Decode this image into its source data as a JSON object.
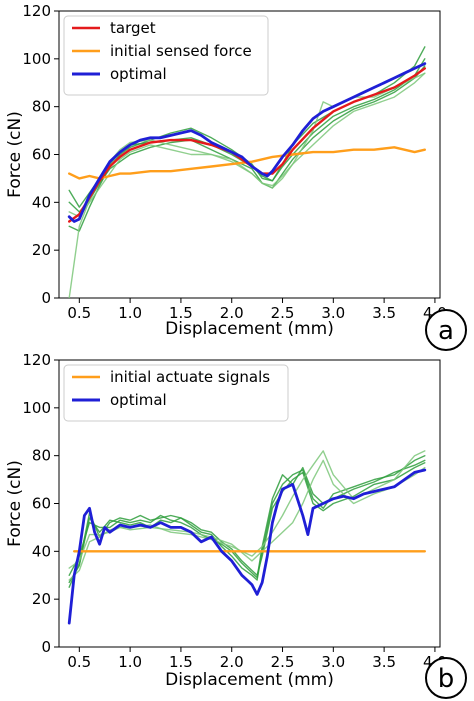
{
  "chart_data": [
    {
      "type": "line",
      "panel_label": "a",
      "xlabel": "Displacement (mm)",
      "ylabel": "Force (cN)",
      "xlim": [
        0.3,
        4.05
      ],
      "ylim": [
        0,
        120
      ],
      "xticks": [
        0.5,
        1.0,
        1.5,
        2.0,
        2.5,
        3.0,
        3.5,
        4.0
      ],
      "xtick_labels": [
        "0.5",
        "1.0",
        "1.5",
        "2.0",
        "2.5",
        "3.0",
        "3.5",
        "4.0"
      ],
      "yticks": [
        0,
        20,
        40,
        60,
        80,
        100,
        120
      ],
      "ytick_labels": [
        "0",
        "20",
        "40",
        "60",
        "80",
        "100",
        "120"
      ],
      "legend_position": "top-left",
      "legend": [
        "target",
        "initial sensed force",
        "optimal"
      ],
      "series": [
        {
          "name": "target",
          "color": "#e41a1c",
          "x": [
            0.4,
            0.5,
            0.6,
            0.7,
            0.8,
            0.9,
            1.0,
            1.2,
            1.4,
            1.6,
            1.8,
            2.0,
            2.2,
            2.3,
            2.4,
            2.5,
            2.6,
            2.8,
            3.0,
            3.2,
            3.4,
            3.6,
            3.8,
            3.9
          ],
          "y": [
            32,
            35,
            42,
            49,
            55,
            59,
            62,
            65,
            66,
            66,
            64,
            61,
            55,
            52,
            52,
            56,
            62,
            71,
            78,
            82,
            85,
            88,
            93,
            96
          ]
        },
        {
          "name": "initial sensed force",
          "color": "#ff9e1b",
          "x": [
            0.4,
            0.5,
            0.6,
            0.7,
            0.8,
            0.9,
            1.0,
            1.2,
            1.4,
            1.6,
            1.8,
            2.0,
            2.2,
            2.4,
            2.6,
            2.8,
            3.0,
            3.2,
            3.4,
            3.6,
            3.8,
            3.9
          ],
          "y": [
            52,
            50,
            51,
            50,
            51,
            52,
            52,
            53,
            53,
            54,
            55,
            56,
            57,
            59,
            60,
            61,
            61,
            62,
            62,
            63,
            61,
            62
          ]
        },
        {
          "name": "optimal",
          "color": "#1f1fd6",
          "x": [
            0.4,
            0.45,
            0.5,
            0.55,
            0.6,
            0.7,
            0.8,
            0.9,
            1.0,
            1.1,
            1.2,
            1.3,
            1.4,
            1.5,
            1.6,
            1.7,
            1.8,
            1.9,
            2.0,
            2.1,
            2.2,
            2.3,
            2.35,
            2.4,
            2.5,
            2.6,
            2.7,
            2.8,
            2.9,
            3.0,
            3.1,
            3.2,
            3.3,
            3.4,
            3.5,
            3.6,
            3.7,
            3.8,
            3.9
          ],
          "y": [
            34,
            32,
            33,
            38,
            43,
            50,
            57,
            61,
            64,
            66,
            67,
            67,
            68,
            69,
            70,
            68,
            65,
            63,
            61,
            59,
            55,
            52,
            51,
            53,
            59,
            64,
            70,
            75,
            78,
            80,
            82,
            84,
            86,
            88,
            90,
            92,
            94,
            96,
            98
          ]
        },
        {
          "name": "",
          "color": "#2e9e3c",
          "x": [
            0.4,
            0.5,
            0.6,
            0.7,
            0.8,
            0.9,
            1.0,
            1.2,
            1.4,
            1.6,
            1.8,
            2.0,
            2.2,
            2.3,
            2.4,
            2.5,
            2.6,
            2.8,
            3.0,
            3.2,
            3.4,
            3.6,
            3.8,
            3.9
          ],
          "y": [
            30,
            28,
            38,
            47,
            55,
            60,
            63,
            66,
            69,
            71,
            67,
            62,
            56,
            50,
            49,
            56,
            64,
            73,
            78,
            82,
            85,
            90,
            97,
            105
          ]
        },
        {
          "name": "",
          "color": "#2e9e3c",
          "x": [
            0.4,
            0.5,
            0.6,
            0.7,
            0.8,
            0.9,
            1.0,
            1.2,
            1.4,
            1.6,
            1.8,
            2.0,
            2.2,
            2.3,
            2.4,
            2.5,
            2.6,
            2.8,
            3.0,
            3.2,
            3.4,
            3.6,
            3.8,
            3.9
          ],
          "y": [
            45,
            38,
            44,
            50,
            56,
            61,
            64,
            65,
            66,
            67,
            64,
            60,
            55,
            51,
            49,
            55,
            60,
            69,
            76,
            80,
            83,
            87,
            93,
            100
          ]
        },
        {
          "name": "",
          "color": "#2e9e3c",
          "x": [
            0.4,
            0.5,
            0.6,
            0.7,
            0.8,
            0.9,
            1.0,
            1.2,
            1.4,
            1.6,
            1.8,
            2.0,
            2.2,
            2.3,
            2.4,
            2.5,
            2.6,
            2.8,
            3.0,
            3.2,
            3.4,
            3.6,
            3.8,
            3.9
          ],
          "y": [
            40,
            36,
            41,
            48,
            54,
            57,
            60,
            63,
            65,
            66,
            62,
            58,
            54,
            48,
            46,
            52,
            58,
            67,
            74,
            79,
            82,
            86,
            92,
            97
          ]
        },
        {
          "name": "",
          "color": "#7cc77a",
          "x": [
            0.4,
            0.5,
            0.6,
            0.7,
            0.8,
            0.9,
            1.0,
            1.2,
            1.4,
            1.6,
            1.8,
            2.0,
            2.2,
            2.3,
            2.4,
            2.5,
            2.6,
            2.8,
            2.9,
            3.0,
            3.2,
            3.4,
            3.6,
            3.8,
            3.9
          ],
          "y": [
            0,
            30,
            41,
            50,
            57,
            62,
            65,
            66,
            64,
            62,
            60,
            57,
            52,
            48,
            46,
            50,
            56,
            70,
            82,
            80,
            84,
            84,
            88,
            92,
            94
          ]
        },
        {
          "name": "",
          "color": "#7cc77a",
          "x": [
            0.4,
            0.5,
            0.6,
            0.7,
            0.8,
            0.9,
            1.0,
            1.2,
            1.4,
            1.6,
            1.8,
            2.0,
            2.2,
            2.3,
            2.4,
            2.5,
            2.6,
            2.8,
            3.0,
            3.2,
            3.4,
            3.6,
            3.8,
            3.9
          ],
          "y": [
            36,
            34,
            40,
            46,
            52,
            58,
            61,
            64,
            62,
            60,
            60,
            58,
            52,
            48,
            47,
            51,
            56,
            64,
            72,
            78,
            81,
            84,
            90,
            94
          ]
        }
      ]
    },
    {
      "type": "line",
      "panel_label": "b",
      "xlabel": "Displacement (mm)",
      "ylabel": "Force (cN)",
      "xlim": [
        0.3,
        4.05
      ],
      "ylim": [
        0,
        120
      ],
      "xticks": [
        0.5,
        1.0,
        1.5,
        2.0,
        2.5,
        3.0,
        3.5,
        4.0
      ],
      "xtick_labels": [
        "0.5",
        "1.0",
        "1.5",
        "2.0",
        "2.5",
        "3.0",
        "3.5",
        "4.0"
      ],
      "yticks": [
        0,
        20,
        40,
        60,
        80,
        100,
        120
      ],
      "ytick_labels": [
        "0",
        "20",
        "40",
        "60",
        "80",
        "100",
        "120"
      ],
      "legend_position": "top-left",
      "legend": [
        "initial actuate signals",
        "optimal"
      ],
      "series": [
        {
          "name": "initial actuate signals",
          "color": "#ff9e1b",
          "x": [
            0.45,
            3.9
          ],
          "y": [
            40,
            40
          ]
        },
        {
          "name": "optimal",
          "color": "#1f1fd6",
          "x": [
            0.4,
            0.45,
            0.5,
            0.55,
            0.6,
            0.65,
            0.7,
            0.75,
            0.8,
            0.9,
            1.0,
            1.1,
            1.2,
            1.3,
            1.4,
            1.5,
            1.6,
            1.7,
            1.8,
            1.9,
            2.0,
            2.1,
            2.15,
            2.2,
            2.25,
            2.3,
            2.35,
            2.4,
            2.45,
            2.5,
            2.6,
            2.7,
            2.75,
            2.8,
            2.9,
            3.0,
            3.1,
            3.2,
            3.3,
            3.4,
            3.5,
            3.6,
            3.7,
            3.8,
            3.9
          ],
          "y": [
            10,
            30,
            40,
            55,
            58,
            48,
            43,
            50,
            48,
            51,
            50,
            51,
            50,
            52,
            50,
            50,
            48,
            44,
            46,
            40,
            36,
            30,
            28,
            26,
            22,
            27,
            38,
            52,
            60,
            66,
            68,
            55,
            47,
            58,
            60,
            62,
            63,
            62,
            64,
            65,
            66,
            67,
            70,
            73,
            74
          ]
        },
        {
          "name": "",
          "color": "#2e9e3c",
          "x": [
            0.4,
            0.5,
            0.6,
            0.7,
            0.8,
            0.9,
            1.0,
            1.1,
            1.2,
            1.3,
            1.4,
            1.5,
            1.6,
            1.7,
            1.8,
            1.9,
            2.0,
            2.1,
            2.2,
            2.25,
            2.3,
            2.4,
            2.5,
            2.6,
            2.7,
            2.8,
            2.9,
            3.0,
            3.2,
            3.4,
            3.6,
            3.8,
            3.9
          ],
          "y": [
            25,
            35,
            56,
            46,
            52,
            54,
            53,
            55,
            53,
            54,
            55,
            54,
            51,
            48,
            47,
            42,
            38,
            33,
            30,
            28,
            40,
            60,
            68,
            72,
            74,
            62,
            58,
            64,
            67,
            70,
            72,
            78,
            80
          ]
        },
        {
          "name": "",
          "color": "#2e9e3c",
          "x": [
            0.4,
            0.5,
            0.6,
            0.7,
            0.8,
            0.9,
            1.0,
            1.1,
            1.2,
            1.3,
            1.4,
            1.5,
            1.6,
            1.7,
            1.8,
            1.9,
            2.0,
            2.1,
            2.2,
            2.25,
            2.3,
            2.4,
            2.5,
            2.6,
            2.7,
            2.8,
            2.9,
            3.0,
            3.2,
            3.4,
            3.6,
            3.8,
            3.9
          ],
          "y": [
            30,
            38,
            52,
            50,
            50,
            53,
            52,
            53,
            52,
            55,
            53,
            52,
            50,
            47,
            45,
            43,
            40,
            35,
            31,
            29,
            42,
            62,
            72,
            68,
            75,
            64,
            60,
            62,
            66,
            69,
            73,
            76,
            78
          ]
        },
        {
          "name": "",
          "color": "#2e9e3c",
          "x": [
            0.4,
            0.5,
            0.6,
            0.7,
            0.8,
            0.9,
            1.0,
            1.1,
            1.2,
            1.3,
            1.4,
            1.5,
            1.6,
            1.7,
            1.8,
            1.9,
            2.0,
            2.1,
            2.2,
            2.25,
            2.3,
            2.4,
            2.5,
            2.6,
            2.7,
            2.8,
            2.9,
            3.0,
            3.2,
            3.4,
            3.6,
            3.8,
            3.9
          ],
          "y": [
            27,
            34,
            54,
            48,
            53,
            52,
            51,
            52,
            50,
            53,
            52,
            54,
            52,
            49,
            48,
            44,
            41,
            36,
            32,
            30,
            38,
            58,
            65,
            70,
            73,
            60,
            57,
            60,
            63,
            68,
            70,
            75,
            77
          ]
        },
        {
          "name": "",
          "color": "#7cc77a",
          "x": [
            0.4,
            0.5,
            0.6,
            0.7,
            0.8,
            0.9,
            1.0,
            1.2,
            1.4,
            1.6,
            1.8,
            2.0,
            2.2,
            2.3,
            2.4,
            2.5,
            2.6,
            2.7,
            2.8,
            2.9,
            3.0,
            3.2,
            3.4,
            3.6,
            3.8,
            3.9
          ],
          "y": [
            28,
            32,
            44,
            46,
            49,
            50,
            49,
            50,
            49,
            48,
            46,
            43,
            36,
            40,
            44,
            48,
            52,
            60,
            70,
            78,
            68,
            60,
            64,
            67,
            72,
            75
          ]
        },
        {
          "name": "",
          "color": "#7cc77a",
          "x": [
            0.4,
            0.5,
            0.6,
            0.7,
            0.8,
            0.9,
            1.0,
            1.2,
            1.4,
            1.6,
            1.8,
            2.0,
            2.2,
            2.3,
            2.4,
            2.5,
            2.6,
            2.7,
            2.8,
            2.9,
            3.0,
            3.2,
            3.4,
            3.6,
            3.8,
            3.9
          ],
          "y": [
            33,
            36,
            47,
            47,
            48,
            50,
            50,
            51,
            48,
            47,
            45,
            42,
            38,
            42,
            48,
            55,
            63,
            70,
            76,
            82,
            72,
            62,
            66,
            70,
            80,
            82
          ]
        }
      ]
    }
  ]
}
